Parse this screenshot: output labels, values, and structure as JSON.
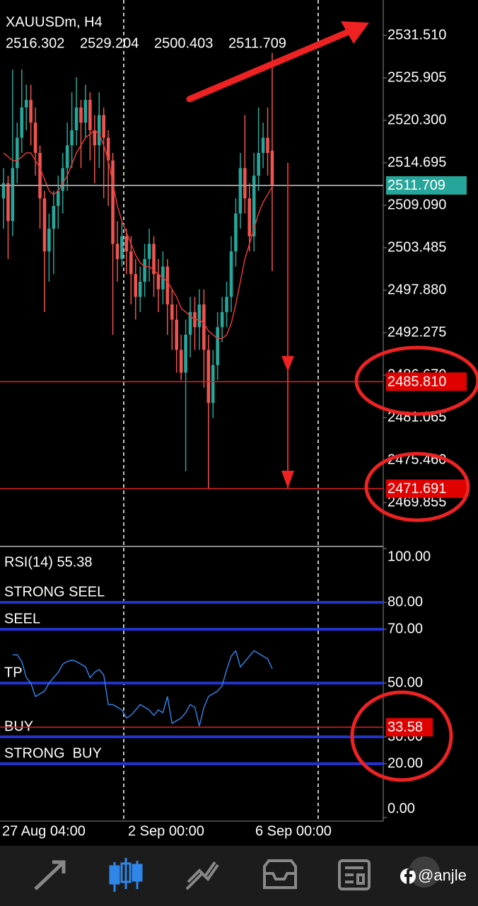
{
  "header": {
    "symbol": "XAUUSDm, H4",
    "ohlc": [
      "2516.302",
      "2529.204",
      "2500.403",
      "2511.709"
    ]
  },
  "chart_data": [
    {
      "type": "candlestick",
      "open": [
        2510,
        2512,
        2507,
        2514,
        2518,
        2522,
        2523,
        2520,
        2516,
        2510,
        2503,
        2506,
        2509,
        2511,
        2514,
        2517,
        2519,
        2522,
        2520,
        2523,
        2519,
        2517,
        2521,
        2518,
        2515,
        2504,
        2502,
        2505,
        2503,
        2500,
        2497,
        2499,
        2502,
        2504,
        2500,
        2498,
        2501,
        2496,
        2494,
        2490,
        2487,
        2492,
        2495,
        2493,
        2496,
        2490,
        2483,
        2488,
        2493,
        2495,
        2497,
        2503,
        2508,
        2514,
        2510,
        2505,
        2513,
        2516,
        2518,
        2516.302
      ],
      "high": [
        2514,
        2513,
        2527,
        2520,
        2527,
        2525,
        2525,
        2522,
        2517,
        2511,
        2508,
        2511,
        2513,
        2516,
        2520,
        2524,
        2526,
        2523,
        2525,
        2524,
        2521,
        2524,
        2522,
        2519,
        2516,
        2507,
        2507,
        2506,
        2505,
        2502,
        2501,
        2504,
        2506,
        2505,
        2502,
        2503,
        2502,
        2498,
        2496,
        2492,
        2494,
        2497,
        2497,
        2498,
        2498,
        2492,
        2490,
        2495,
        2497,
        2499,
        2505,
        2510,
        2516,
        2521,
        2512,
        2516,
        2522,
        2520,
        2522,
        2529.204
      ],
      "low": [
        2506,
        2502,
        2505,
        2512,
        2516,
        2519,
        2517,
        2513,
        2506,
        2495,
        2499,
        2500,
        2506,
        2508,
        2511,
        2514,
        2517,
        2514,
        2518,
        2515,
        2512,
        2514,
        2510,
        2509,
        2492,
        2499,
        2501,
        2500,
        2496,
        2494,
        2495,
        2497,
        2499,
        2497,
        2495,
        2496,
        2492,
        2490,
        2487,
        2486,
        2474,
        2489,
        2490,
        2490,
        2485,
        2471.7,
        2481,
        2486,
        2491,
        2493,
        2495,
        2501,
        2506,
        2508,
        2503,
        2503,
        2511,
        2514,
        2513,
        2500.403
      ],
      "close": [
        2512,
        2507,
        2514,
        2518,
        2522,
        2523,
        2520,
        2516,
        2510,
        2503,
        2506,
        2509,
        2511,
        2514,
        2517,
        2519,
        2522,
        2520,
        2523,
        2519,
        2517,
        2521,
        2518,
        2515,
        2504,
        2502,
        2505,
        2503,
        2500,
        2497,
        2499,
        2502,
        2504,
        2500,
        2498,
        2501,
        2496,
        2494,
        2490,
        2487,
        2492,
        2495,
        2493,
        2496,
        2490,
        2483,
        2488,
        2493,
        2495,
        2497,
        2503,
        2508,
        2514,
        2510,
        2505,
        2513,
        2516,
        2518,
        2516,
        2511.709
      ],
      "up_color": "#26a69a",
      "down_color": "#ef5350",
      "ma": {
        "color": "#e53935",
        "values": [
          2516,
          2515.5,
          2515,
          2515,
          2515.5,
          2516,
          2516,
          2515,
          2514,
          2512.5,
          2511,
          2510.5,
          2511,
          2512,
          2513,
          2514.5,
          2516,
          2517,
          2518,
          2518.5,
          2519,
          2518.5,
          2517,
          2515,
          2512,
          2509,
          2507,
          2505.5,
          2504,
          2502.5,
          2501.5,
          2501,
          2501,
          2500.5,
          2500,
          2499.5,
          2499,
          2498,
          2497,
          2495.5,
          2495,
          2494.5,
          2494,
          2494,
          2493.5,
          2492.5,
          2492,
          2491.5,
          2491.5,
          2492,
          2493.5,
          2496,
          2499,
          2502,
          2504,
          2506,
          2508,
          2509.5,
          2510.5,
          2511.5
        ]
      },
      "ylim": [
        2464.25,
        2536.18
      ],
      "yticks": [
        {
          "value": 2531.51,
          "label": "2531.510"
        },
        {
          "value": 2525.905,
          "label": "2525.905"
        },
        {
          "value": 2520.3,
          "label": "2520.300"
        },
        {
          "value": 2514.695,
          "label": "2514.695"
        },
        {
          "value": 2509.09,
          "label": "2509.090"
        },
        {
          "value": 2503.485,
          "label": "2503.485"
        },
        {
          "value": 2497.88,
          "label": "2497.880"
        },
        {
          "value": 2492.275,
          "label": "2492.275"
        },
        {
          "value": 2486.67,
          "label": "2486.670"
        },
        {
          "value": 2481.065,
          "label": "2481.065"
        },
        {
          "value": 2475.46,
          "label": "2475.460"
        },
        {
          "value": 2469.855,
          "label": "2469.855"
        }
      ],
      "current_price": {
        "value": 2511.709,
        "label": "2511.709"
      },
      "levels": [
        {
          "value": 2485.81,
          "label": "2485.810"
        },
        {
          "value": 2471.691,
          "label": "2471.691"
        }
      ],
      "x_labels": [
        "27 Aug 04:00",
        "2 Sep 00:00",
        "6 Sep 00:00"
      ]
    },
    {
      "type": "line",
      "title": "RSI(14) 55.38",
      "color": "#2f7fe0",
      "values": [
        null,
        null,
        60.5,
        60.5,
        58,
        52,
        50,
        45,
        46,
        47,
        50,
        52,
        54,
        57,
        58,
        58.5,
        58,
        57,
        56,
        52,
        54,
        55,
        53,
        42,
        42,
        41,
        40,
        37,
        38,
        40,
        42,
        41,
        40,
        38,
        40,
        39,
        45,
        35,
        36,
        37,
        39,
        42,
        41,
        34,
        41,
        45,
        46,
        47,
        49,
        55,
        60,
        62,
        56,
        58,
        60,
        62,
        61,
        60,
        59,
        55.38
      ],
      "ylim": [
        0,
        100
      ],
      "yticks": [
        {
          "value": 100,
          "label": "100.00"
        },
        {
          "value": 80,
          "label": "80.00"
        },
        {
          "value": 70,
          "label": "70.00"
        },
        {
          "value": 50,
          "label": "50.00"
        },
        {
          "value": 30,
          "label": "30.00"
        },
        {
          "value": 20,
          "label": "20.00"
        },
        {
          "value": 0,
          "label": "0.00"
        }
      ],
      "levels": [
        {
          "value": 80,
          "name": "STRONG SEEL"
        },
        {
          "value": 70,
          "name": "SEEL"
        },
        {
          "value": 50,
          "name": "TP"
        },
        {
          "value": 30,
          "name": "BUY"
        },
        {
          "value": 20,
          "name": "STRONG  BUY"
        }
      ],
      "level_color": "#2233cc",
      "marker": {
        "value": 33.58,
        "label": "33.58"
      }
    }
  ],
  "watermark": "@anjle"
}
